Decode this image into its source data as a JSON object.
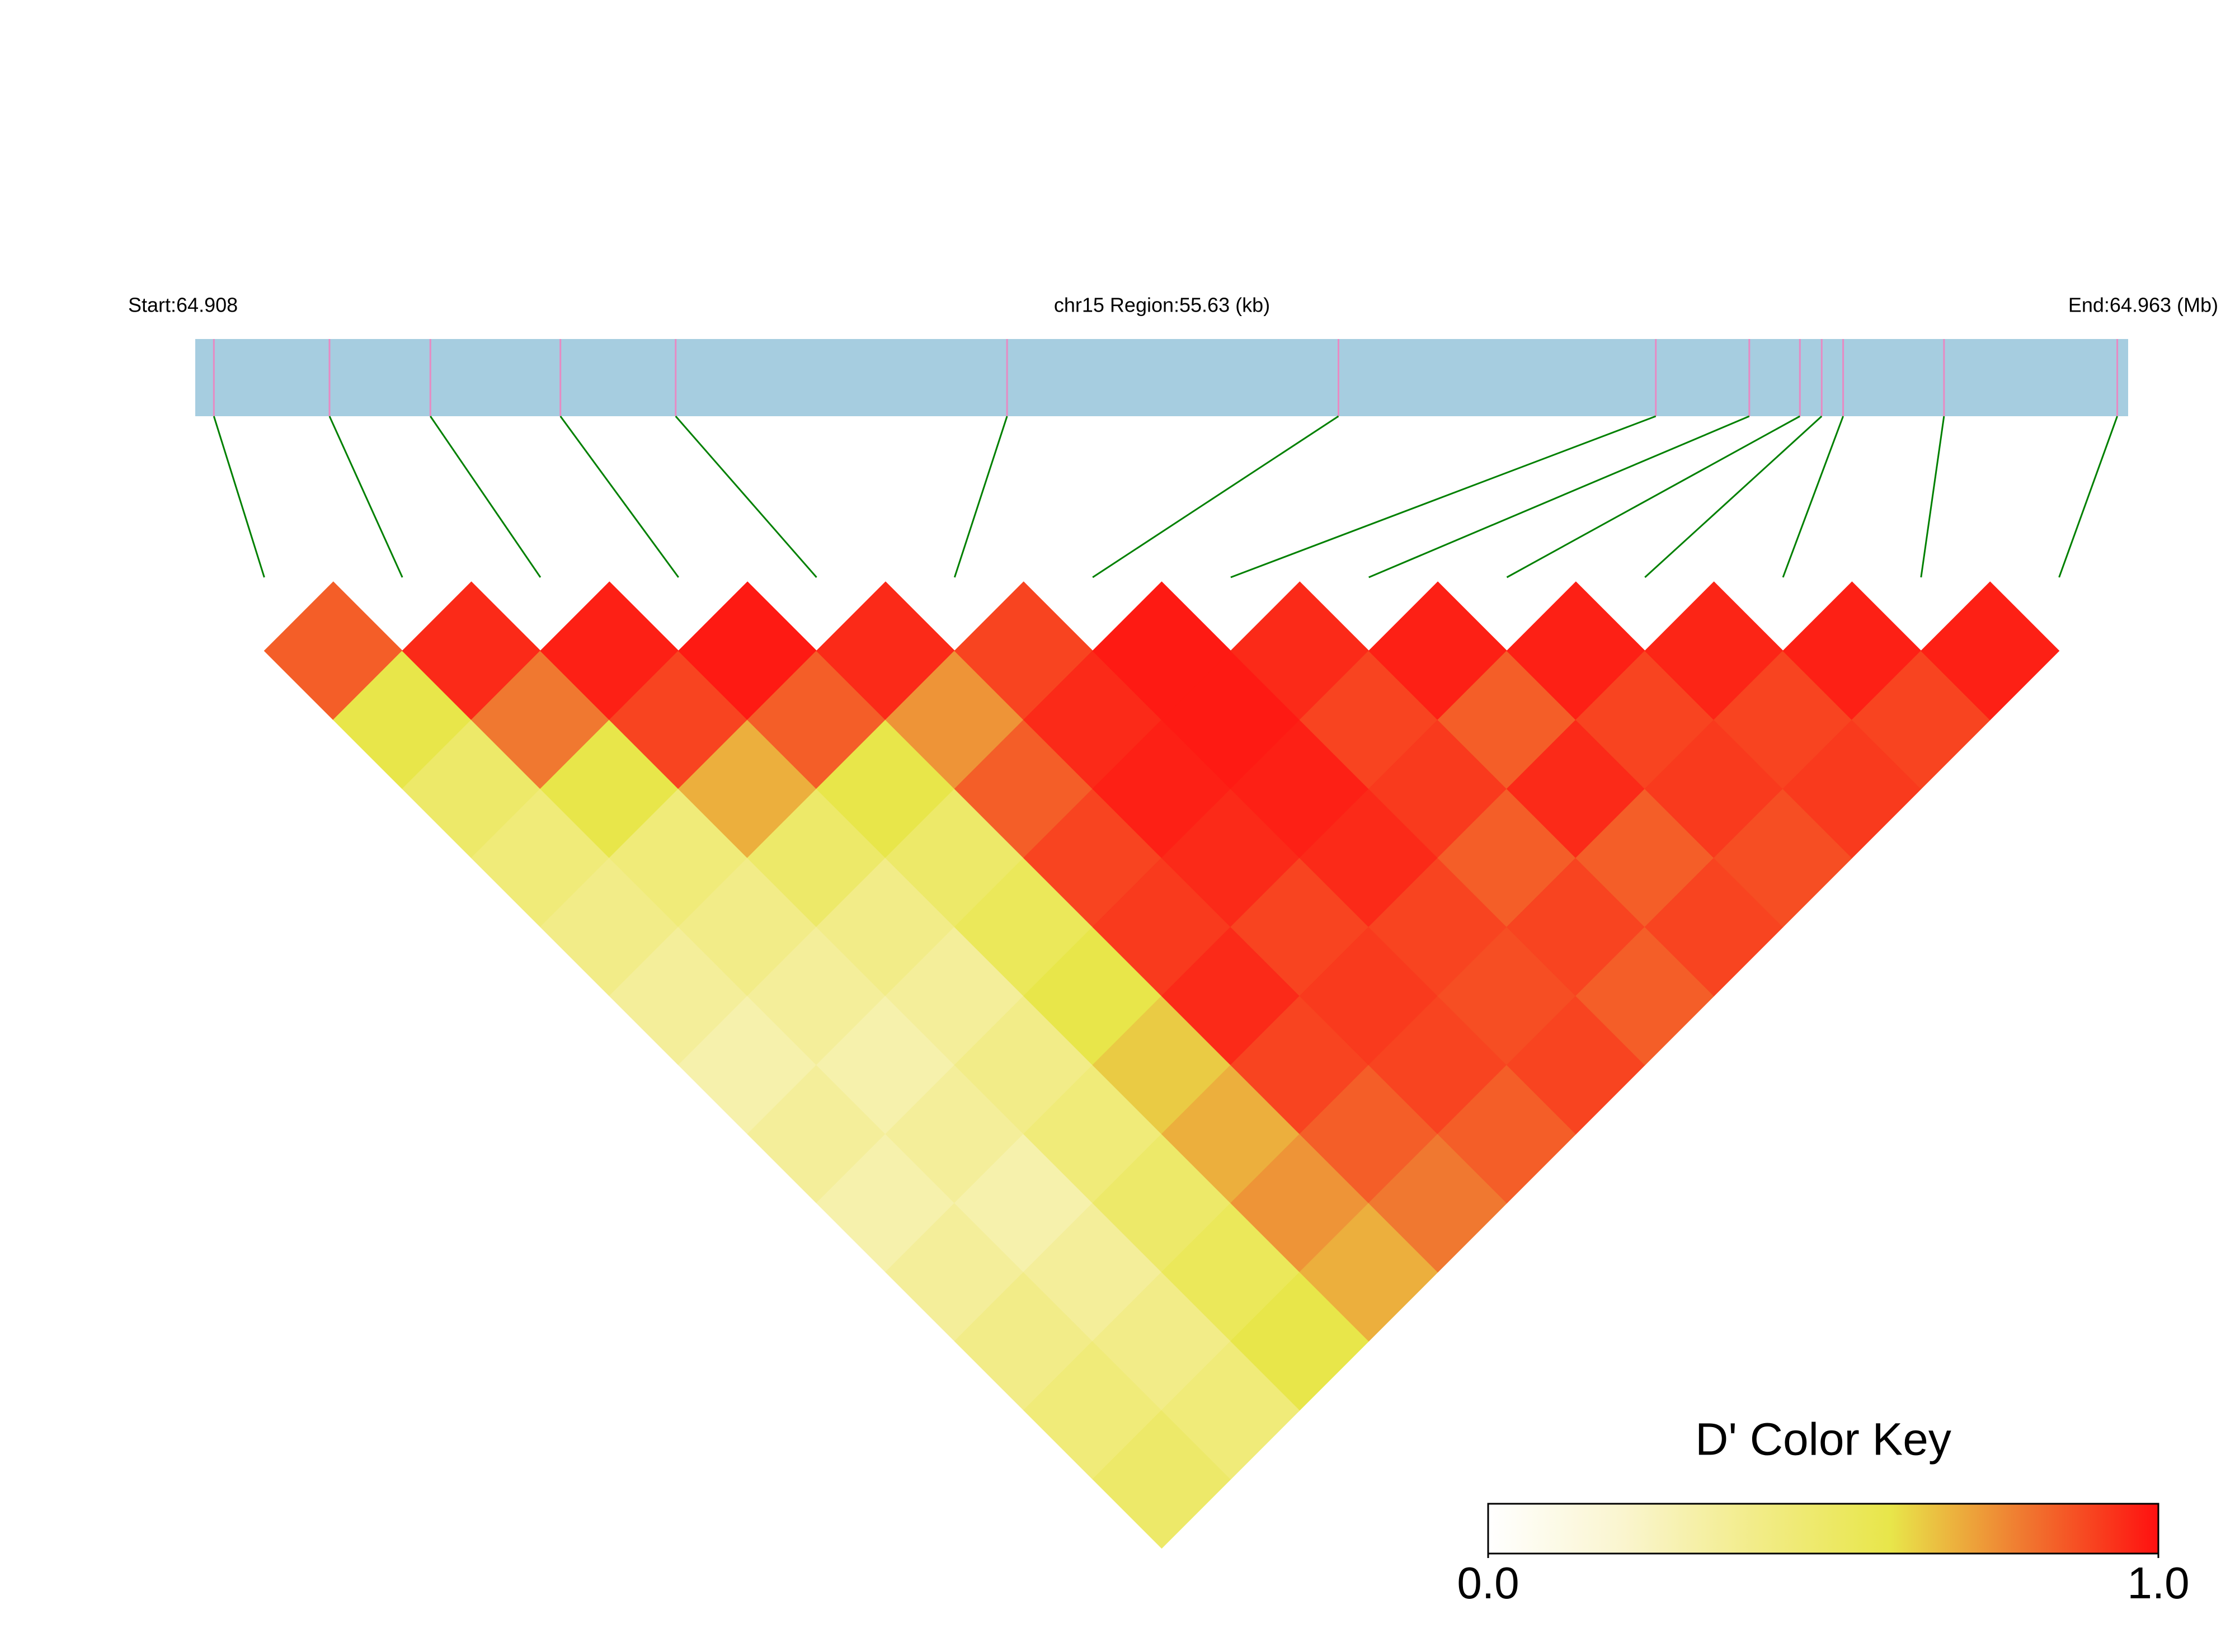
{
  "chart_data": {
    "type": "ld-heatmap",
    "title": "chr15 Region:55.63 (kb)",
    "start_label": "Start:64.908",
    "end_label": "End:64.963 (Mb)",
    "x": [
      64.90853,
      64.91182,
      64.91469,
      64.91839,
      64.92167,
      64.9311,
      64.94053,
      64.94956,
      64.95222,
      64.95366,
      64.95428,
      64.95489,
      64.95776,
      64.96269
    ],
    "xlim": [
      64.908,
      64.963
    ],
    "values": [
      [],
      [
        0.85
      ],
      [
        0.6,
        0.95
      ],
      [
        0.5,
        0.8,
        0.97
      ],
      [
        0.45,
        0.6,
        0.9,
        0.98
      ],
      [
        0.4,
        0.45,
        0.7,
        0.85,
        0.95
      ],
      [
        0.35,
        0.4,
        0.5,
        0.6,
        0.75,
        0.9
      ],
      [
        0.3,
        0.35,
        0.4,
        0.5,
        0.85,
        0.95,
        0.98
      ],
      [
        0.35,
        0.3,
        0.35,
        0.55,
        0.9,
        0.97,
        0.98,
        0.95
      ],
      [
        0.3,
        0.35,
        0.4,
        0.6,
        0.92,
        0.95,
        0.97,
        0.9,
        0.97
      ],
      [
        0.35,
        0.3,
        0.45,
        0.65,
        0.95,
        0.9,
        0.95,
        0.92,
        0.85,
        0.97
      ],
      [
        0.4,
        0.35,
        0.5,
        0.7,
        0.9,
        0.92,
        0.9,
        0.85,
        0.95,
        0.9,
        0.96
      ],
      [
        0.45,
        0.4,
        0.55,
        0.75,
        0.85,
        0.9,
        0.88,
        0.9,
        0.85,
        0.92,
        0.9,
        0.97
      ],
      [
        0.5,
        0.45,
        0.6,
        0.7,
        0.8,
        0.85,
        0.9,
        0.85,
        0.9,
        0.88,
        0.92,
        0.9,
        0.97
      ]
    ],
    "colorscale": [
      "#ffffff",
      "#faf5cf",
      "#f2ec88",
      "#e8e64a",
      "#f07830",
      "#ff1010"
    ],
    "bar_color": "#a6cde0",
    "snp_color": "#e78ac3",
    "connector_color": "#008000",
    "colorbar": {
      "title": "D' Color Key",
      "lim": [
        0,
        1
      ],
      "ticks": [
        {
          "value": 0,
          "label": "0.0"
        },
        {
          "value": 1,
          "label": "1.0"
        }
      ]
    }
  }
}
